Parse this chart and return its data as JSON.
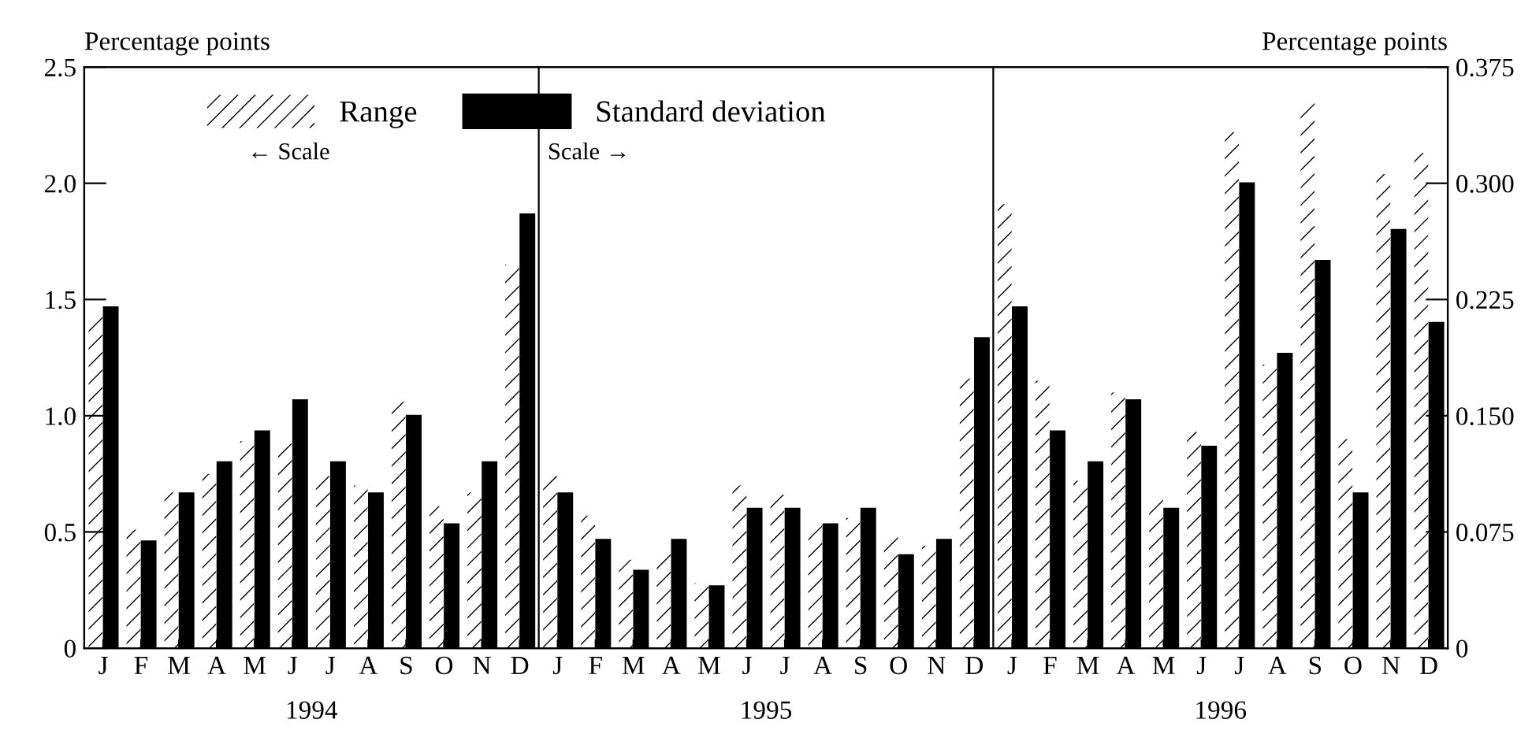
{
  "chart_data": {
    "type": "bar",
    "ylabel": "Percentage points",
    "y2label": "Percentage points",
    "categories": [
      "J",
      "F",
      "M",
      "A",
      "M",
      "J",
      "J",
      "A",
      "S",
      "O",
      "N",
      "D",
      "J",
      "F",
      "M",
      "A",
      "M",
      "J",
      "J",
      "A",
      "S",
      "O",
      "N",
      "D",
      "J",
      "F",
      "M",
      "A",
      "M",
      "J",
      "J",
      "A",
      "S",
      "O",
      "N",
      "D"
    ],
    "series": [
      {
        "name": "Range",
        "color": "#ffffff",
        "values": [
          1.43,
          0.51,
          0.67,
          0.75,
          0.89,
          0.88,
          0.74,
          0.7,
          1.06,
          0.61,
          0.67,
          1.65,
          0.74,
          0.57,
          0.38,
          0.41,
          0.28,
          0.7,
          0.66,
          0.53,
          0.56,
          0.48,
          0.44,
          1.16,
          1.91,
          1.15,
          0.72,
          1.1,
          0.64,
          0.93,
          2.22,
          1.22,
          2.35,
          0.9,
          2.04,
          2.13
        ]
      },
      {
        "name": "Standard deviation",
        "color": "#000000",
        "axis": "y2",
        "values": [
          0.22,
          0.069,
          0.1,
          0.12,
          0.14,
          0.16,
          0.12,
          0.1,
          0.15,
          0.08,
          0.12,
          0.28,
          0.1,
          0.07,
          0.05,
          0.07,
          0.04,
          0.09,
          0.09,
          0.08,
          0.09,
          0.06,
          0.07,
          0.2,
          0.22,
          0.14,
          0.12,
          0.16,
          0.09,
          0.13,
          0.3,
          0.19,
          0.25,
          0.1,
          0.27,
          0.21
        ]
      }
    ],
    "ylim": [
      0,
      2.5
    ],
    "yticks": [
      0,
      0.5,
      {
        "value": 1.0,
        "label": "1.0"
      },
      1.5,
      {
        "value": 2.0,
        "label": "2.0"
      },
      2.5
    ],
    "y2lim": [
      0,
      0.375
    ],
    "y2ticks": [
      0,
      0.075,
      {
        "value": 0.15,
        "label": "0.150"
      },
      0.225,
      {
        "value": 0.3,
        "label": "0.300"
      },
      0.375
    ],
    "annotations": [
      "← Scale",
      "Scale →",
      "1994",
      "1995",
      "1996"
    ],
    "legend": "top left",
    "grid": false
  }
}
